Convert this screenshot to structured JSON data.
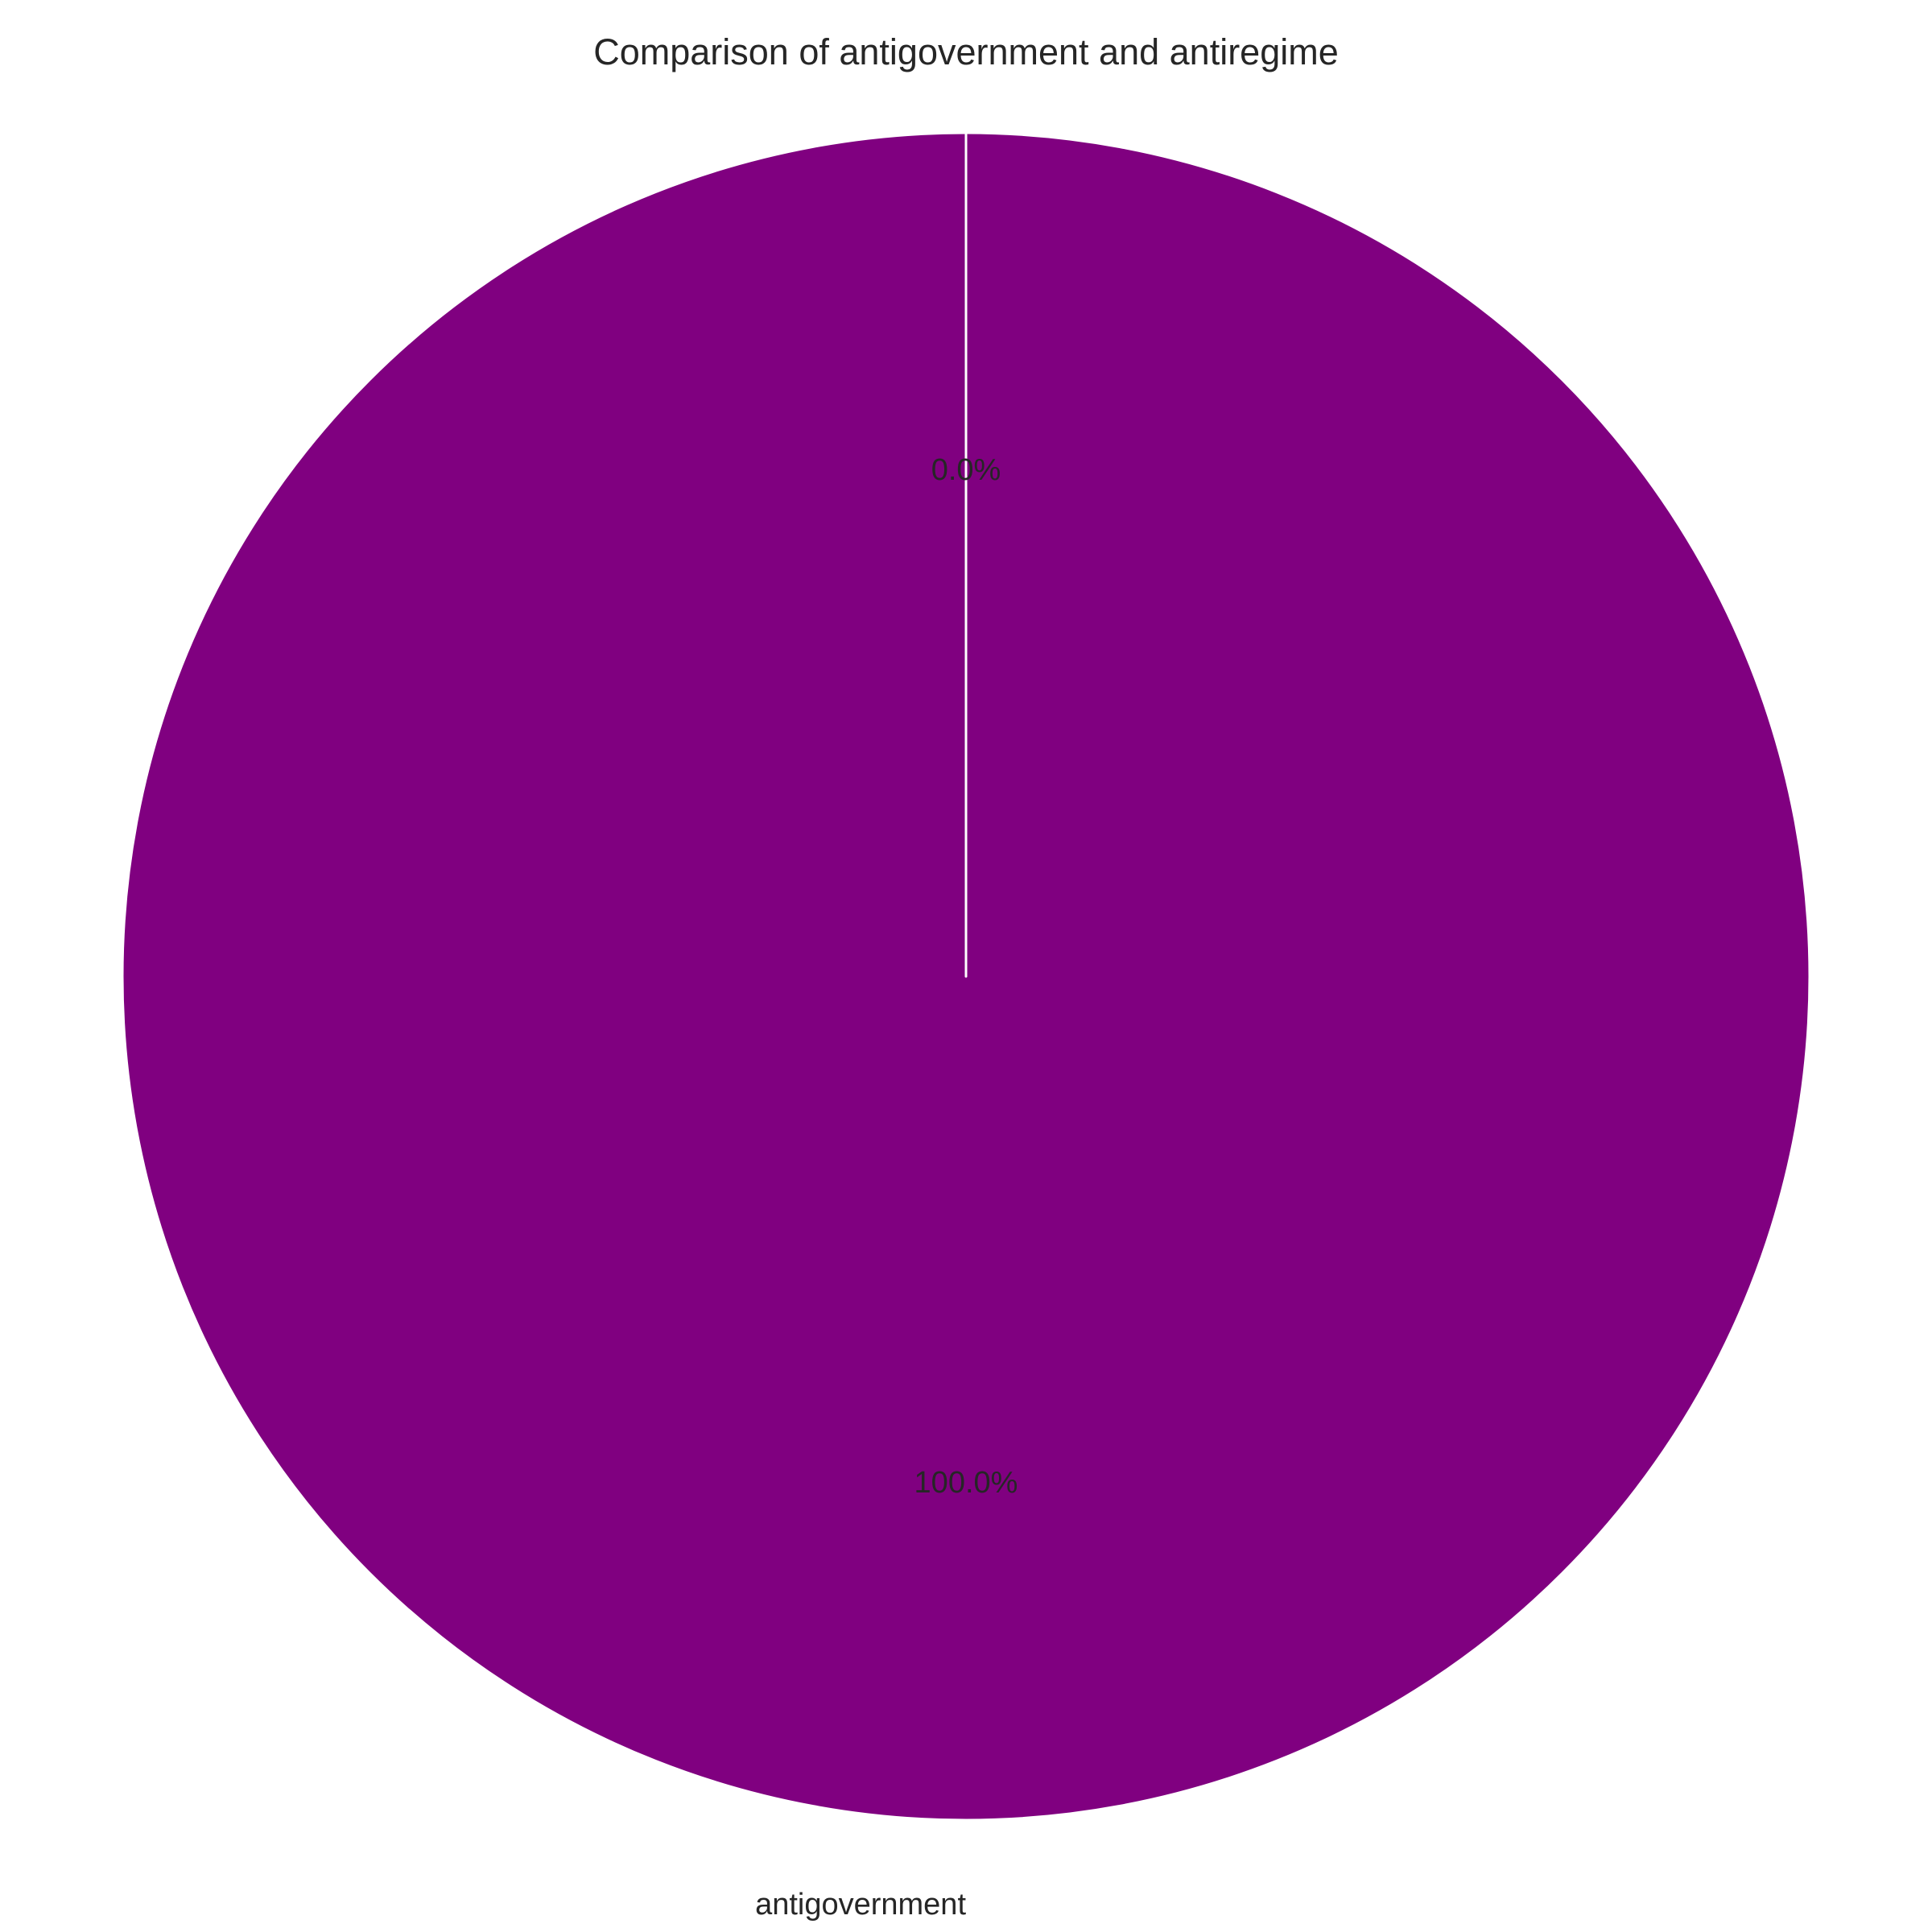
{
  "chart_data": {
    "type": "pie",
    "title": "Comparison of antigovernment and antiregime",
    "categories": [
      "antigovernment",
      "antiregime"
    ],
    "values": [
      100.0,
      0.0
    ],
    "slice_labels": [
      "antigovernment",
      ""
    ],
    "percent_labels": [
      "100.0%",
      "0.0%"
    ],
    "colors": [
      "#800080",
      "#800080"
    ],
    "edge_color": "#ffffff",
    "start_angle_deg": 90,
    "direction": "counterclockwise",
    "legend": "none"
  }
}
